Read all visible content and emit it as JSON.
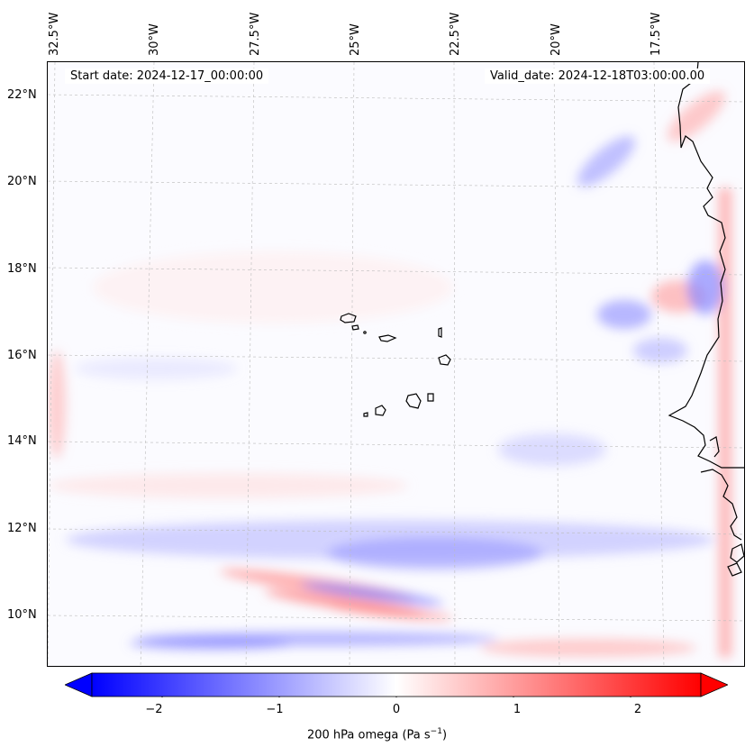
{
  "map": {
    "title_left": "Start date: 2024-12-17_00:00:00",
    "title_right": "Valid_date: 2024-12-18T03:00:00.00",
    "lon_labels": [
      "32.5°W",
      "30°W",
      "27.5°W",
      "25°W",
      "22.5°W",
      "20°W",
      "17.5°W"
    ],
    "lat_labels": [
      "22°N",
      "20°N",
      "18°N",
      "16°N",
      "14°N",
      "12°N",
      "10°N"
    ],
    "features": [
      "Cape Verde islands",
      "West African coastline"
    ]
  },
  "colorbar": {
    "label": "200 hPa omega (Pa s",
    "label_exp": "−1",
    "label_tail": ")",
    "ticks": [
      "−2",
      "−1",
      "0",
      "1",
      "2"
    ],
    "vmin": -2.6,
    "vmax": 2.6,
    "colors": {
      "neg": "#0000ff",
      "mid": "#ffffff",
      "pos": "#ff0000"
    }
  }
}
